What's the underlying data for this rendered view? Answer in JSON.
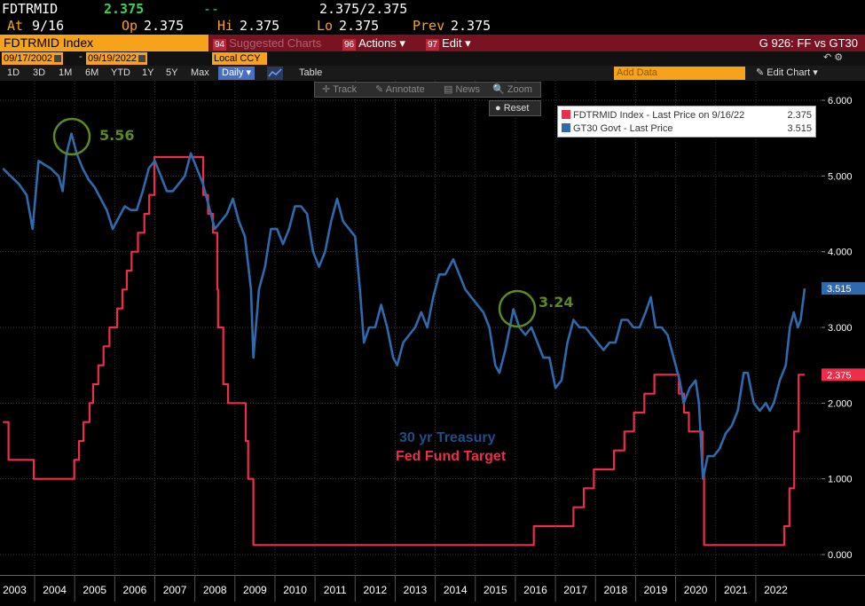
{
  "quote": {
    "ticker": "FDTRMID",
    "last": "2.375",
    "change": "--",
    "bid_ask": "2.375/2.375",
    "at_label": "At",
    "at_date": "9/16",
    "op_label": "Op",
    "op": "2.375",
    "hi_label": "Hi",
    "hi": "2.375",
    "lo_label": "Lo",
    "lo": "2.375",
    "prev_label": "Prev",
    "prev": "2.375"
  },
  "titlebar": {
    "title": "FDTRMID Index",
    "suggested_num": "94",
    "suggested": "Suggested Charts",
    "actions_num": "96",
    "actions": "Actions ▾",
    "edit_num": "97",
    "edit": "Edit ▾",
    "chart_id": "G 926: FF vs GT30"
  },
  "datebar": {
    "start": "09/17/2002",
    "end": "09/19/2022",
    "dash": "-",
    "currency": "Local CCY",
    "currency_arrow": "▾",
    "icons": "↶  ⚙"
  },
  "periods": [
    "1D",
    "3D",
    "1M",
    "6M",
    "YTD",
    "1Y",
    "5Y",
    "Max"
  ],
  "frequency": "Daily ▾",
  "table_label": "Table",
  "add_data": "Add Data",
  "edit_chart": "✎ Edit Chart",
  "edit_chart_arrow": "▾",
  "toolbar": {
    "track": "✛ Track",
    "annotate": "✎ Annotate",
    "news": "▤ News",
    "zoom": "🔍 Zoom"
  },
  "reset": "● Reset",
  "legend": {
    "series1": "FDTRMID Index - Last Price on 9/16/22",
    "series1_value": "2.375",
    "series2": "GT30 Govt - Last Price",
    "series2_value": "3.515"
  },
  "annotations": {
    "peak": "5.56",
    "trough": "3.24",
    "label1": "30 yr Treasury",
    "label2": "Fed Fund Target"
  },
  "colors": {
    "fed": "#ef2d4b",
    "treasury": "#2f6aad",
    "accent": "#f7a21b",
    "annotation": "#5c8a1e"
  },
  "chart_data": {
    "type": "line",
    "title": "",
    "xlabel": "",
    "ylabel": "",
    "ylim": [
      0,
      6.25
    ],
    "yticks": [
      "0.000",
      "1.000",
      "2.000",
      "3.000",
      "4.000",
      "5.000",
      "6.000"
    ],
    "xticks": [
      "2003",
      "2004",
      "2005",
      "2006",
      "2007",
      "2008",
      "2009",
      "2010",
      "2011",
      "2012",
      "2013",
      "2014",
      "2015",
      "2016",
      "2017",
      "2018",
      "2019",
      "2020",
      "2021",
      "2022"
    ],
    "last_labels": {
      "treasury": "3.515",
      "fed": "2.375"
    },
    "series": [
      {
        "name": "FDTRMID Index - Last Price on 9/16/22",
        "color": "#ef2d4b",
        "step": true,
        "points": [
          [
            2002.71,
            1.75
          ],
          [
            2002.85,
            1.25
          ],
          [
            2003.48,
            1.0
          ],
          [
            2004.49,
            1.25
          ],
          [
            2004.61,
            1.5
          ],
          [
            2004.72,
            1.75
          ],
          [
            2004.87,
            2.0
          ],
          [
            2004.96,
            2.25
          ],
          [
            2005.09,
            2.5
          ],
          [
            2005.22,
            2.75
          ],
          [
            2005.37,
            3.0
          ],
          [
            2005.56,
            3.25
          ],
          [
            2005.69,
            3.5
          ],
          [
            2005.8,
            3.75
          ],
          [
            2005.92,
            4.0
          ],
          [
            2006.08,
            4.25
          ],
          [
            2006.24,
            4.5
          ],
          [
            2006.36,
            4.75
          ],
          [
            2006.49,
            5.25
          ],
          [
            2007.71,
            4.75
          ],
          [
            2007.83,
            4.5
          ],
          [
            2007.95,
            4.25
          ],
          [
            2008.06,
            3.5
          ],
          [
            2008.08,
            3.0
          ],
          [
            2008.21,
            2.25
          ],
          [
            2008.33,
            2.0
          ],
          [
            2008.77,
            1.5
          ],
          [
            2008.83,
            1.0
          ],
          [
            2008.96,
            0.125
          ],
          [
            2015.96,
            0.375
          ],
          [
            2016.95,
            0.625
          ],
          [
            2017.21,
            0.875
          ],
          [
            2017.46,
            1.125
          ],
          [
            2017.96,
            1.375
          ],
          [
            2018.22,
            1.625
          ],
          [
            2018.46,
            1.875
          ],
          [
            2018.72,
            2.125
          ],
          [
            2018.97,
            2.375
          ],
          [
            2019.58,
            2.125
          ],
          [
            2019.71,
            1.875
          ],
          [
            2019.83,
            1.625
          ],
          [
            2020.17,
            1.125
          ],
          [
            2020.21,
            0.125
          ],
          [
            2022.21,
            0.375
          ],
          [
            2022.34,
            0.875
          ],
          [
            2022.46,
            1.625
          ],
          [
            2022.57,
            2.375
          ],
          [
            2022.72,
            2.375
          ]
        ]
      },
      {
        "name": "GT30 Govt - Last Price",
        "color": "#2f6aad",
        "step": false,
        "points": [
          [
            2002.71,
            5.1
          ],
          [
            2002.9,
            5.0
          ],
          [
            2003.1,
            4.9
          ],
          [
            2003.3,
            4.75
          ],
          [
            2003.45,
            4.3
          ],
          [
            2003.6,
            5.2
          ],
          [
            2003.75,
            5.15
          ],
          [
            2003.9,
            5.1
          ],
          [
            2004.1,
            5.0
          ],
          [
            2004.2,
            4.8
          ],
          [
            2004.3,
            5.3
          ],
          [
            2004.42,
            5.56
          ],
          [
            2004.55,
            5.3
          ],
          [
            2004.7,
            5.1
          ],
          [
            2004.85,
            4.95
          ],
          [
            2005.0,
            4.85
          ],
          [
            2005.15,
            4.7
          ],
          [
            2005.3,
            4.55
          ],
          [
            2005.45,
            4.3
          ],
          [
            2005.6,
            4.45
          ],
          [
            2005.75,
            4.6
          ],
          [
            2005.9,
            4.55
          ],
          [
            2006.05,
            4.55
          ],
          [
            2006.2,
            4.8
          ],
          [
            2006.35,
            5.1
          ],
          [
            2006.5,
            5.2
          ],
          [
            2006.65,
            5.0
          ],
          [
            2006.8,
            4.8
          ],
          [
            2006.95,
            4.8
          ],
          [
            2007.1,
            4.9
          ],
          [
            2007.25,
            5.0
          ],
          [
            2007.4,
            5.3
          ],
          [
            2007.55,
            5.1
          ],
          [
            2007.7,
            4.9
          ],
          [
            2007.85,
            4.6
          ],
          [
            2008.0,
            4.3
          ],
          [
            2008.15,
            4.4
          ],
          [
            2008.3,
            4.5
          ],
          [
            2008.45,
            4.7
          ],
          [
            2008.6,
            4.4
          ],
          [
            2008.75,
            4.2
          ],
          [
            2008.9,
            3.5
          ],
          [
            2008.96,
            2.6
          ],
          [
            2009.1,
            3.5
          ],
          [
            2009.25,
            3.8
          ],
          [
            2009.4,
            4.3
          ],
          [
            2009.55,
            4.3
          ],
          [
            2009.7,
            4.1
          ],
          [
            2009.85,
            4.3
          ],
          [
            2010.0,
            4.6
          ],
          [
            2010.15,
            4.6
          ],
          [
            2010.3,
            4.5
          ],
          [
            2010.45,
            4.0
          ],
          [
            2010.6,
            3.8
          ],
          [
            2010.75,
            4.0
          ],
          [
            2010.9,
            4.4
          ],
          [
            2011.05,
            4.7
          ],
          [
            2011.2,
            4.4
          ],
          [
            2011.35,
            4.3
          ],
          [
            2011.5,
            4.2
          ],
          [
            2011.62,
            3.5
          ],
          [
            2011.72,
            2.8
          ],
          [
            2011.85,
            3.0
          ],
          [
            2012.0,
            3.0
          ],
          [
            2012.15,
            3.3
          ],
          [
            2012.3,
            3.0
          ],
          [
            2012.45,
            2.6
          ],
          [
            2012.55,
            2.5
          ],
          [
            2012.7,
            2.8
          ],
          [
            2012.85,
            2.9
          ],
          [
            2013.0,
            3.0
          ],
          [
            2013.15,
            3.2
          ],
          [
            2013.3,
            3.0
          ],
          [
            2013.45,
            3.4
          ],
          [
            2013.6,
            3.7
          ],
          [
            2013.75,
            3.7
          ],
          [
            2013.95,
            3.9
          ],
          [
            2014.1,
            3.7
          ],
          [
            2014.25,
            3.5
          ],
          [
            2014.4,
            3.4
          ],
          [
            2014.55,
            3.3
          ],
          [
            2014.7,
            3.2
          ],
          [
            2014.85,
            3.0
          ],
          [
            2015.0,
            2.5
          ],
          [
            2015.1,
            2.4
          ],
          [
            2015.25,
            2.7
          ],
          [
            2015.45,
            3.24
          ],
          [
            2015.6,
            3.0
          ],
          [
            2015.75,
            2.9
          ],
          [
            2015.9,
            3.0
          ],
          [
            2016.05,
            2.8
          ],
          [
            2016.2,
            2.6
          ],
          [
            2016.35,
            2.6
          ],
          [
            2016.5,
            2.2
          ],
          [
            2016.65,
            2.3
          ],
          [
            2016.8,
            2.8
          ],
          [
            2016.95,
            3.1
          ],
          [
            2017.1,
            3.0
          ],
          [
            2017.25,
            3.0
          ],
          [
            2017.4,
            2.9
          ],
          [
            2017.55,
            2.8
          ],
          [
            2017.7,
            2.7
          ],
          [
            2017.85,
            2.8
          ],
          [
            2018.0,
            2.8
          ],
          [
            2018.15,
            3.1
          ],
          [
            2018.3,
            3.1
          ],
          [
            2018.45,
            3.0
          ],
          [
            2018.6,
            3.0
          ],
          [
            2018.75,
            3.2
          ],
          [
            2018.88,
            3.4
          ],
          [
            2019.0,
            3.0
          ],
          [
            2019.15,
            3.0
          ],
          [
            2019.3,
            2.9
          ],
          [
            2019.45,
            2.6
          ],
          [
            2019.6,
            2.3
          ],
          [
            2019.7,
            2.0
          ],
          [
            2019.85,
            2.2
          ],
          [
            2020.0,
            2.3
          ],
          [
            2020.08,
            2.0
          ],
          [
            2020.18,
            1.0
          ],
          [
            2020.3,
            1.3
          ],
          [
            2020.45,
            1.3
          ],
          [
            2020.6,
            1.4
          ],
          [
            2020.75,
            1.6
          ],
          [
            2020.9,
            1.7
          ],
          [
            2021.05,
            1.9
          ],
          [
            2021.2,
            2.4
          ],
          [
            2021.3,
            2.4
          ],
          [
            2021.45,
            2.0
          ],
          [
            2021.6,
            1.9
          ],
          [
            2021.75,
            2.0
          ],
          [
            2021.85,
            1.9
          ],
          [
            2021.95,
            2.0
          ],
          [
            2022.1,
            2.3
          ],
          [
            2022.25,
            2.5
          ],
          [
            2022.35,
            3.0
          ],
          [
            2022.45,
            3.2
          ],
          [
            2022.55,
            3.0
          ],
          [
            2022.62,
            3.1
          ],
          [
            2022.72,
            3.515
          ]
        ]
      }
    ]
  }
}
